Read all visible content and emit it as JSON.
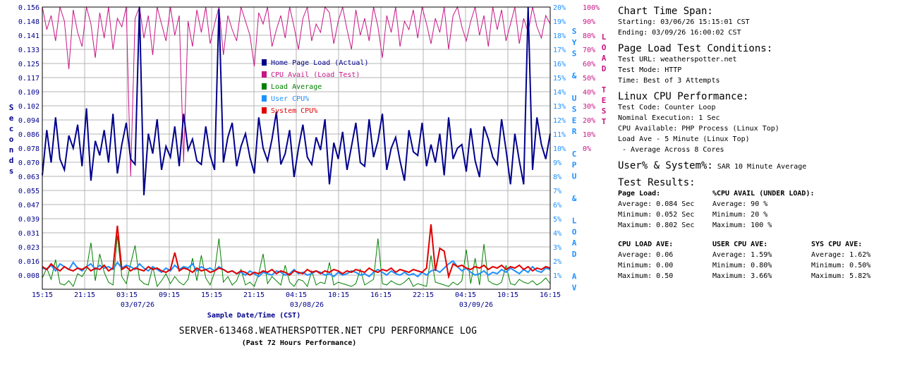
{
  "chart_data": {
    "type": "line",
    "title": "SERVER-613468.WEATHERSPOTTER.NET CPU PERFORMANCE LOG",
    "subtitle": "(Past 72 Hours Performance)",
    "xlabel": "Sample Date/Time (CST)",
    "ylabel_left": "Seconds",
    "ylabel_right_1": "SYS & USER CPU & LOAD AV",
    "ylabel_right_2": "LOAD TEST",
    "left_ticks": [
      "0.156",
      "0.148",
      "0.141",
      "0.133",
      "0.125",
      "0.117",
      "0.109",
      "0.102",
      "0.094",
      "0.086",
      "0.078",
      "0.070",
      "0.063",
      "0.055",
      "0.047",
      "0.039",
      "0.031",
      "0.023",
      "0.016",
      "0.008"
    ],
    "ylim_left": [
      0,
      0.156
    ],
    "right_ticks_1": [
      "20%",
      "19%",
      "18%",
      "17%",
      "16%",
      "15%",
      "14%",
      "13%",
      "12%",
      "11%",
      "10%",
      "9%",
      "8%",
      "7%",
      "6%",
      "5%",
      "4%",
      "3%",
      "2%",
      "1%"
    ],
    "ylim_right_1": [
      0,
      20
    ],
    "right_ticks_2": [
      "100%",
      "90%",
      "80%",
      "70%",
      "60%",
      "50%",
      "40%",
      "30%",
      "20%",
      "10%",
      "0%"
    ],
    "ylim_right_2": [
      0,
      100
    ],
    "x_ticks": [
      "15:15",
      "21:15",
      "03:15",
      "09:15",
      "15:15",
      "21:15",
      "04:15",
      "10:15",
      "16:15",
      "22:15",
      "04:15",
      "10:15",
      "16:15"
    ],
    "date_labels": [
      "03/07/26",
      "03/08/26",
      "03/09/26"
    ],
    "grid": true,
    "legend": [
      {
        "name": "Home Page Load (Actual)",
        "color": "#00008b"
      },
      {
        "name": "CPU Avail (Load Test)",
        "color": "#c71585"
      },
      {
        "name": "Load Average",
        "color": "#008000"
      },
      {
        "name": "User CPU%",
        "color": "#1e90ff"
      },
      {
        "name": "System CPU%",
        "color": "#e00000"
      }
    ],
    "series": [
      {
        "name": "Home Page Load (Actual)",
        "units": "seconds",
        "values": [
          0.063,
          0.088,
          0.07,
          0.095,
          0.072,
          0.066,
          0.085,
          0.078,
          0.091,
          0.068,
          0.1,
          0.06,
          0.082,
          0.074,
          0.088,
          0.07,
          0.097,
          0.064,
          0.08,
          0.092,
          0.072,
          0.069,
          0.158,
          0.052,
          0.086,
          0.075,
          0.094,
          0.066,
          0.079,
          0.073,
          0.09,
          0.068,
          0.097,
          0.077,
          0.083,
          0.071,
          0.069,
          0.09,
          0.074,
          0.066,
          0.155,
          0.07,
          0.084,
          0.092,
          0.068,
          0.079,
          0.086,
          0.073,
          0.064,
          0.095,
          0.078,
          0.071,
          0.083,
          0.098,
          0.069,
          0.075,
          0.088,
          0.062,
          0.078,
          0.091,
          0.073,
          0.069,
          0.084,
          0.077,
          0.094,
          0.058,
          0.081,
          0.072,
          0.087,
          0.066,
          0.079,
          0.092,
          0.07,
          0.068,
          0.094,
          0.073,
          0.082,
          0.097,
          0.066,
          0.078,
          0.084,
          0.071,
          0.06,
          0.088,
          0.076,
          0.074,
          0.092,
          0.068,
          0.08,
          0.07,
          0.086,
          0.063,
          0.095,
          0.072,
          0.078,
          0.08,
          0.065,
          0.089,
          0.071,
          0.062,
          0.09,
          0.083,
          0.073,
          0.069,
          0.094,
          0.077,
          0.058,
          0.086,
          0.071,
          0.058,
          0.158,
          0.066,
          0.095,
          0.08,
          0.072,
          0.086
        ]
      },
      {
        "name": "CPU Avail (Load Test)",
        "units": "percent",
        "values": [
          100,
          92,
          97,
          88,
          100,
          95,
          78,
          99,
          91,
          86,
          100,
          94,
          82,
          98,
          89,
          100,
          85,
          96,
          93,
          100,
          40,
          96,
          100,
          89,
          97,
          83,
          100,
          94,
          88,
          100,
          90,
          97,
          45,
          95,
          86,
          99,
          91,
          100,
          87,
          94,
          100,
          83,
          97,
          92,
          88,
          100,
          95,
          90,
          79,
          98,
          94,
          100,
          86,
          92,
          97,
          89,
          100,
          93,
          85,
          96,
          100,
          88,
          94,
          91,
          100,
          98,
          87,
          95,
          100,
          92,
          85,
          99,
          90,
          96,
          88,
          100,
          93,
          82,
          97,
          91,
          100,
          86,
          95,
          92,
          99,
          89,
          100,
          94,
          87,
          96,
          91,
          100,
          85,
          97,
          100,
          93,
          88,
          95,
          100,
          90,
          97,
          86,
          100,
          92,
          99,
          88,
          94,
          100,
          87,
          96,
          91,
          100,
          93,
          89,
          97,
          94
        ]
      },
      {
        "name": "Load Average",
        "units": "percent_of_right_axis_1",
        "values": [
          0.8,
          1.5,
          0.7,
          2.1,
          0.4,
          0.3,
          0.6,
          0.2,
          1.1,
          0.9,
          1.4,
          3.3,
          0.6,
          2.5,
          1.2,
          0.5,
          0.3,
          3.8,
          0.9,
          0.4,
          1.8,
          3.1,
          0.7,
          0.4,
          0.3,
          1.6,
          0.2,
          0.6,
          1.1,
          0.4,
          0.9,
          0.5,
          0.3,
          0.7,
          2.2,
          0.6,
          2.4,
          0.8,
          0.3,
          1.2,
          3.6,
          0.5,
          0.9,
          0.3,
          0.6,
          1.4,
          0.3,
          0.5,
          0.2,
          1.1,
          2.5,
          0.4,
          0.9,
          0.6,
          0.3,
          1.7,
          0.5,
          0.2,
          0.7,
          0.6,
          0.2,
          1.3,
          0.3,
          0.5,
          0.4,
          1.9,
          0.3,
          0.5,
          0.4,
          0.3,
          0.2,
          0.4,
          1.4,
          0.3,
          0.5,
          0.7,
          3.6,
          0.4,
          0.3,
          0.6,
          0.4,
          0.3,
          0.5,
          0.8,
          0.2,
          0.4,
          0.3,
          0.2,
          2.4,
          0.5,
          0.4,
          0.3,
          0.2,
          0.5,
          0.3,
          0.6,
          2.8,
          0.4,
          2.2,
          0.3,
          3.2,
          0.6,
          0.4,
          0.3,
          0.5,
          1.7,
          0.4,
          0.3,
          0.7,
          0.5,
          0.4,
          0.6,
          0.3,
          0.5,
          0.8,
          0.4
        ]
      },
      {
        "name": "User CPU%",
        "units": "percent_of_right_axis_1",
        "values": [
          1.5,
          1.4,
          1.7,
          1.3,
          1.8,
          1.6,
          1.4,
          1.9,
          1.5,
          1.3,
          1.6,
          1.8,
          1.4,
          1.7,
          1.5,
          1.6,
          1.4,
          1.9,
          1.5,
          1.7,
          1.6,
          1.4,
          1.8,
          1.5,
          1.3,
          1.6,
          1.4,
          1.2,
          1.5,
          1.3,
          1.7,
          1.4,
          1.6,
          1.5,
          1.8,
          1.3,
          1.6,
          1.4,
          1.5,
          1.3,
          1.6,
          1.4,
          1.2,
          1.3,
          1.1,
          1.2,
          1.0,
          1.3,
          1.1,
          0.9,
          1.2,
          1.1,
          1.0,
          1.3,
          1.2,
          1.0,
          1.1,
          1.4,
          1.1,
          1.2,
          1.0,
          1.1,
          1.3,
          1.2,
          1.0,
          1.1,
          0.9,
          1.2,
          1.0,
          1.1,
          1.3,
          1.2,
          1.0,
          1.1,
          0.9,
          1.2,
          1.4,
          1.2,
          1.0,
          1.3,
          1.1,
          1.0,
          1.2,
          1.0,
          1.1,
          0.9,
          1.2,
          1.0,
          1.3,
          1.4,
          1.2,
          1.5,
          1.8,
          2.0,
          1.6,
          1.3,
          1.5,
          1.2,
          1.0,
          1.1,
          1.3,
          1.0,
          1.2,
          1.1,
          1.4,
          1.2,
          1.5,
          1.3,
          1.1,
          1.4,
          1.2,
          1.6,
          1.3,
          1.2,
          1.5,
          1.4
        ]
      },
      {
        "name": "System CPU%",
        "units": "percent_of_right_axis_1",
        "values": [
          1.6,
          1.4,
          1.8,
          1.5,
          1.3,
          1.6,
          1.4,
          1.3,
          1.5,
          1.4,
          1.6,
          1.3,
          1.5,
          1.4,
          1.7,
          1.3,
          1.5,
          4.5,
          1.4,
          1.6,
          1.3,
          1.5,
          1.4,
          1.3,
          1.6,
          1.4,
          1.5,
          1.3,
          1.2,
          1.4,
          2.6,
          1.3,
          1.5,
          1.4,
          1.2,
          1.5,
          1.3,
          1.4,
          1.2,
          1.3,
          1.5,
          1.4,
          1.2,
          1.3,
          1.1,
          1.3,
          1.2,
          1.0,
          1.2,
          1.1,
          1.3,
          1.2,
          1.4,
          1.1,
          1.3,
          1.2,
          1.0,
          1.3,
          1.2,
          1.1,
          1.4,
          1.2,
          1.3,
          1.1,
          1.3,
          1.2,
          1.4,
          1.3,
          1.1,
          1.3,
          1.2,
          1.4,
          1.3,
          1.2,
          1.5,
          1.3,
          1.2,
          1.4,
          1.3,
          1.5,
          1.2,
          1.4,
          1.3,
          1.2,
          1.4,
          1.3,
          1.2,
          1.5,
          4.6,
          1.3,
          2.9,
          2.7,
          0.9,
          1.8,
          1.6,
          1.7,
          1.5,
          1.4,
          1.6,
          1.5,
          1.7,
          1.4,
          1.6,
          1.5,
          1.7,
          1.4,
          1.6,
          1.5,
          1.7,
          1.4,
          1.6,
          1.3,
          1.5,
          1.4,
          1.6,
          1.5
        ]
      }
    ]
  },
  "info": {
    "span_head": "Chart Time Span:",
    "span_start": "Starting: 03/06/26 15:15:01 CST",
    "span_end": "Ending: 03/09/26 16:00:02 CST",
    "plt_head": "Page Load Test Conditions:",
    "plt_url": "Test URL: weatherspotter.net",
    "plt_mode": "Test Mode: HTTP",
    "plt_time": "Time:  Best of 3 Attempts",
    "cpu_head": "Linux CPU Performance:",
    "cpu_code": "Test Code: Counter Loop",
    "cpu_nominal": "Nominal Execution: 1 Sec",
    "cpu_avail": "CPU Available:  PHP Process (Linux Top)",
    "cpu_load": "Load Ave - 5 Minute (Linux Top)",
    "cpu_cores": " - Average Across 8 Cores",
    "us_head": "User% & System%:",
    "us_note": "SAR 10 Minute Average",
    "res_head": "Test Results:",
    "pl_head": "Page Load:",
    "pl_avg": "Average: 0.084 Sec",
    "pl_min": "Minimum: 0.052 Sec",
    "pl_max": "Maximum: 0.802 Sec",
    "ca_head": "%CPU AVAIL (UNDER LOAD):",
    "ca_avg": "Average: 90 %",
    "ca_min": "Minimum: 20 %",
    "ca_max": "Maximum: 100 %",
    "la_head": "CPU LOAD AVE:",
    "la_avg": "Average: 0.06",
    "la_min": "Minimum: 0.00",
    "la_max": "Maximum: 0.50",
    "uc_head": "USER CPU AVE:",
    "uc_avg": "Average: 1.59%",
    "uc_min": "Minimum: 0.80%",
    "uc_max": "Maximum: 3.66%",
    "sc_head": "SYS CPU AVE:",
    "sc_avg": "Average: 1.62%",
    "sc_min": "Minimum: 0.50%",
    "sc_max": "Maximum: 5.82%"
  },
  "colors": {
    "navy": "#00008b",
    "magenta": "#c71585",
    "green": "#008000",
    "blue": "#1e90ff",
    "red": "#e00000",
    "grid": "#b4b4b4"
  }
}
